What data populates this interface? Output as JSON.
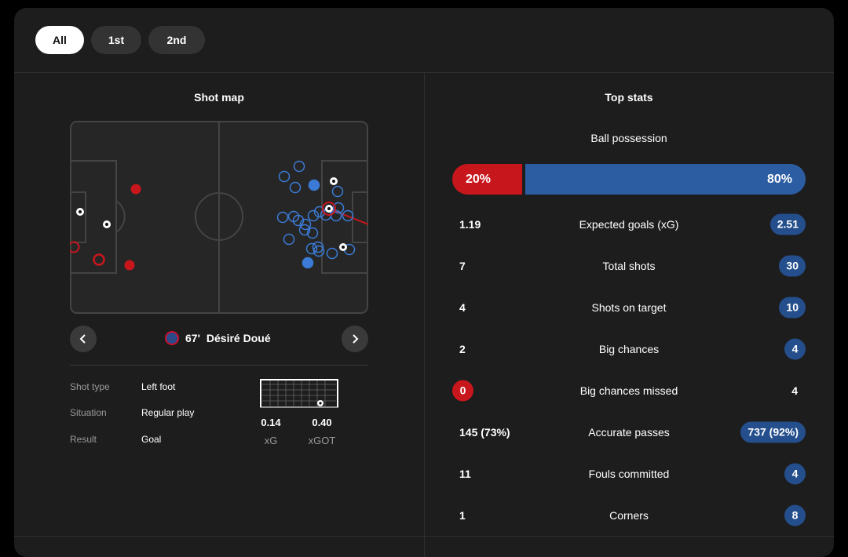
{
  "tabs": [
    {
      "label": "All",
      "active": true
    },
    {
      "label": "1st",
      "active": false
    },
    {
      "label": "2nd",
      "active": false
    }
  ],
  "shot_map": {
    "title": "Shot map",
    "player": {
      "minute": "67'",
      "name": "Désiré Doué"
    },
    "details": [
      {
        "label": "Shot type",
        "value": "Left foot"
      },
      {
        "label": "Situation",
        "value": "Regular play"
      },
      {
        "label": "Result",
        "value": "Goal"
      }
    ],
    "xg": {
      "value": "0.14",
      "label": "xG"
    },
    "xgot": {
      "value": "0.40",
      "label": "xGOT"
    }
  },
  "top_stats": {
    "title": "Top stats",
    "possession": {
      "label": "Ball possession",
      "home": "20%",
      "away": "80%",
      "home_fraction": 0.2
    },
    "rows": [
      {
        "label": "Expected goals (xG)",
        "home": "1.19",
        "away": "2.51",
        "highlight": "away"
      },
      {
        "label": "Total shots",
        "home": "7",
        "away": "30",
        "highlight": "away"
      },
      {
        "label": "Shots on target",
        "home": "4",
        "away": "10",
        "highlight": "away"
      },
      {
        "label": "Big chances",
        "home": "2",
        "away": "4",
        "highlight": "away"
      },
      {
        "label": "Big chances missed",
        "home": "0",
        "away": "4",
        "highlight": "home"
      },
      {
        "label": "Accurate passes",
        "home": "145 (73%)",
        "away": "737 (92%)",
        "highlight": "away"
      },
      {
        "label": "Fouls committed",
        "home": "11",
        "away": "4",
        "highlight": "away"
      },
      {
        "label": "Corners",
        "home": "1",
        "away": "8",
        "highlight": "away"
      }
    ]
  },
  "colors": {
    "home": "#c8161d",
    "away": "#2c5da3",
    "away_pill": "#244f8c",
    "background": "#1d1d1d"
  },
  "icons": {
    "prev": "chevron-left-icon",
    "next": "chevron-right-icon",
    "goal": "football-icon",
    "crest": "club-crest-icon"
  }
}
